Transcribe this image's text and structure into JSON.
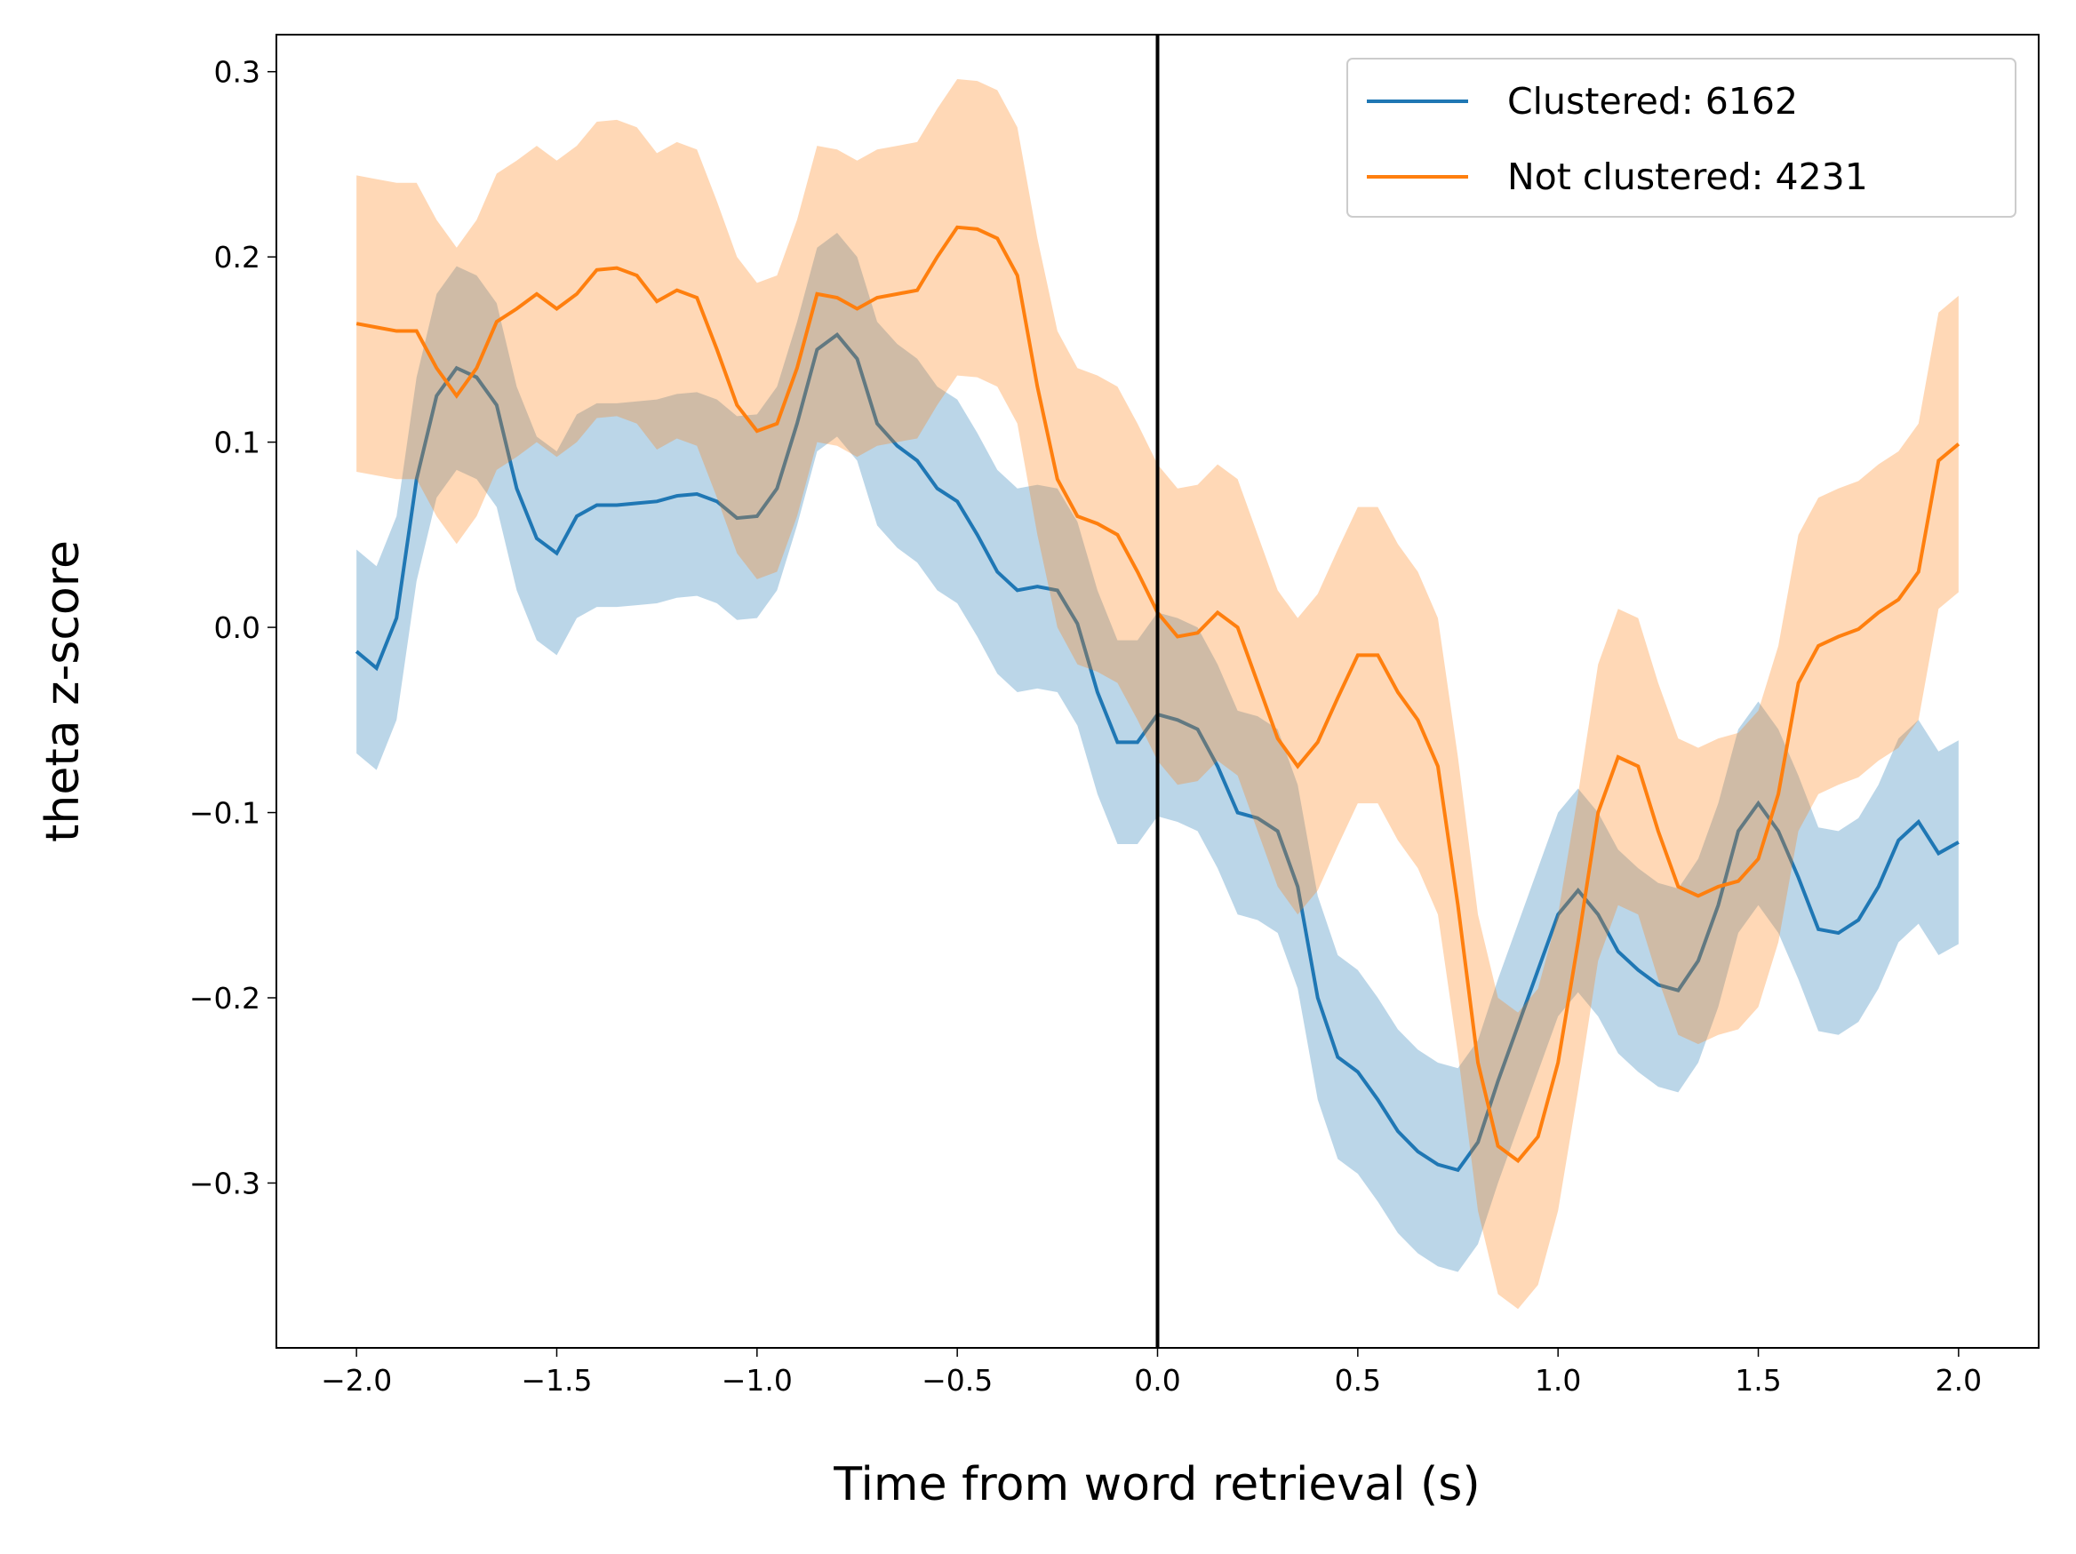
{
  "chart_data": {
    "type": "line",
    "xlabel": "Time from word retrieval (s)",
    "ylabel": "theta z-score",
    "x": [
      -2.0,
      -1.95,
      -1.9,
      -1.85,
      -1.8,
      -1.75,
      -1.7,
      -1.65,
      -1.6,
      -1.55,
      -1.5,
      -1.45,
      -1.4,
      -1.35,
      -1.3,
      -1.25,
      -1.2,
      -1.15,
      -1.1,
      -1.05,
      -1.0,
      -0.95,
      -0.9,
      -0.85,
      -0.8,
      -0.75,
      -0.7,
      -0.65,
      -0.6,
      -0.55,
      -0.5,
      -0.45,
      -0.4,
      -0.35,
      -0.3,
      -0.25,
      -0.2,
      -0.15,
      -0.1,
      -0.05,
      0.0,
      0.05,
      0.1,
      0.15,
      0.2,
      0.25,
      0.3,
      0.35,
      0.4,
      0.45,
      0.5,
      0.55,
      0.6,
      0.65,
      0.7,
      0.75,
      0.8,
      0.85,
      0.9,
      0.95,
      1.0,
      1.05,
      1.1,
      1.15,
      1.2,
      1.25,
      1.3,
      1.35,
      1.4,
      1.45,
      1.5,
      1.55,
      1.6,
      1.65,
      1.7,
      1.75,
      1.8,
      1.85,
      1.9,
      1.95,
      2.0
    ],
    "series": [
      {
        "name": "Clustered: 6162",
        "color": "#1f77b4",
        "values": [
          -0.013,
          -0.022,
          0.005,
          0.08,
          0.125,
          0.14,
          0.135,
          0.12,
          0.075,
          0.048,
          0.04,
          0.06,
          0.066,
          0.066,
          0.067,
          0.068,
          0.071,
          0.072,
          0.068,
          0.059,
          0.06,
          0.075,
          0.11,
          0.15,
          0.158,
          0.145,
          0.11,
          0.098,
          0.09,
          0.075,
          0.068,
          0.05,
          0.03,
          0.02,
          0.022,
          0.02,
          0.002,
          -0.035,
          -0.062,
          -0.062,
          -0.047,
          -0.05,
          -0.055,
          -0.075,
          -0.1,
          -0.103,
          -0.11,
          -0.14,
          -0.2,
          -0.232,
          -0.24,
          -0.255,
          -0.272,
          -0.283,
          -0.29,
          -0.293,
          -0.278,
          -0.245,
          -0.215,
          -0.185,
          -0.155,
          -0.142,
          -0.155,
          -0.175,
          -0.185,
          -0.193,
          -0.196,
          -0.18,
          -0.15,
          -0.11,
          -0.095,
          -0.11,
          -0.135,
          -0.163,
          -0.165,
          -0.158,
          -0.14,
          -0.115,
          -0.105,
          -0.122,
          -0.116
        ],
        "error": [
          0.055,
          0.055,
          0.055,
          0.055,
          0.055,
          0.055,
          0.055,
          0.055,
          0.055,
          0.055,
          0.055,
          0.055,
          0.055,
          0.055,
          0.055,
          0.055,
          0.055,
          0.055,
          0.055,
          0.055,
          0.055,
          0.055,
          0.055,
          0.055,
          0.055,
          0.055,
          0.055,
          0.055,
          0.055,
          0.055,
          0.055,
          0.055,
          0.055,
          0.055,
          0.055,
          0.055,
          0.055,
          0.055,
          0.055,
          0.055,
          0.055,
          0.055,
          0.055,
          0.055,
          0.055,
          0.055,
          0.055,
          0.055,
          0.055,
          0.055,
          0.055,
          0.055,
          0.055,
          0.055,
          0.055,
          0.055,
          0.055,
          0.055,
          0.055,
          0.055,
          0.055,
          0.055,
          0.055,
          0.055,
          0.055,
          0.055,
          0.055,
          0.055,
          0.055,
          0.055,
          0.055,
          0.055,
          0.055,
          0.055,
          0.055,
          0.055,
          0.055,
          0.055,
          0.055,
          0.055,
          0.055
        ]
      },
      {
        "name": "Not clustered: 4231",
        "color": "#ff7f0e",
        "values": [
          0.164,
          0.162,
          0.16,
          0.16,
          0.14,
          0.125,
          0.14,
          0.165,
          0.172,
          0.18,
          0.172,
          0.18,
          0.193,
          0.194,
          0.19,
          0.176,
          0.182,
          0.178,
          0.15,
          0.12,
          0.106,
          0.11,
          0.14,
          0.18,
          0.178,
          0.172,
          0.178,
          0.18,
          0.182,
          0.2,
          0.216,
          0.215,
          0.21,
          0.19,
          0.13,
          0.08,
          0.06,
          0.056,
          0.05,
          0.03,
          0.008,
          -0.005,
          -0.003,
          0.008,
          0.0,
          -0.03,
          -0.06,
          -0.075,
          -0.062,
          -0.038,
          -0.015,
          -0.015,
          -0.035,
          -0.05,
          -0.075,
          -0.15,
          -0.235,
          -0.28,
          -0.288,
          -0.275,
          -0.235,
          -0.17,
          -0.1,
          -0.07,
          -0.075,
          -0.11,
          -0.14,
          -0.145,
          -0.14,
          -0.137,
          -0.125,
          -0.09,
          -0.03,
          -0.01,
          -0.005,
          -0.001,
          0.008,
          0.015,
          0.03,
          0.09,
          0.099
        ],
        "error": [
          0.08,
          0.08,
          0.08,
          0.08,
          0.08,
          0.08,
          0.08,
          0.08,
          0.08,
          0.08,
          0.08,
          0.08,
          0.08,
          0.08,
          0.08,
          0.08,
          0.08,
          0.08,
          0.08,
          0.08,
          0.08,
          0.08,
          0.08,
          0.08,
          0.08,
          0.08,
          0.08,
          0.08,
          0.08,
          0.08,
          0.08,
          0.08,
          0.08,
          0.08,
          0.08,
          0.08,
          0.08,
          0.08,
          0.08,
          0.08,
          0.08,
          0.08,
          0.08,
          0.08,
          0.08,
          0.08,
          0.08,
          0.08,
          0.08,
          0.08,
          0.08,
          0.08,
          0.08,
          0.08,
          0.08,
          0.08,
          0.08,
          0.08,
          0.08,
          0.08,
          0.08,
          0.08,
          0.08,
          0.08,
          0.08,
          0.08,
          0.08,
          0.08,
          0.08,
          0.08,
          0.08,
          0.08,
          0.08,
          0.08,
          0.08,
          0.08,
          0.08,
          0.08,
          0.08,
          0.08,
          0.08
        ]
      }
    ],
    "vline": 0,
    "xlim": [
      -2.2,
      2.2
    ],
    "xticks": [
      {
        "value": -2,
        "label": "−2.0"
      },
      {
        "value": -1.5,
        "label": "−1.5"
      },
      {
        "value": -1,
        "label": "−1.0"
      },
      {
        "value": -0.5,
        "label": "−0.5"
      },
      {
        "value": 0,
        "label": "0.0"
      },
      {
        "value": 0.5,
        "label": "0.5"
      },
      {
        "value": 1,
        "label": "1.0"
      },
      {
        "value": 1.5,
        "label": "1.5"
      },
      {
        "value": 2,
        "label": "2.0"
      }
    ],
    "ylim": [
      -0.389,
      0.32
    ],
    "yticks": [
      {
        "value": -0.3,
        "label": "−0.3"
      },
      {
        "value": -0.2,
        "label": "−0.2"
      },
      {
        "value": -0.1,
        "label": "−0.1"
      },
      {
        "value": 0,
        "label": "0.0"
      },
      {
        "value": 0.1,
        "label": "0.1"
      },
      {
        "value": 0.2,
        "label": "0.2"
      },
      {
        "value": 0.3,
        "label": "0.3"
      }
    ],
    "legend": "upper right"
  }
}
